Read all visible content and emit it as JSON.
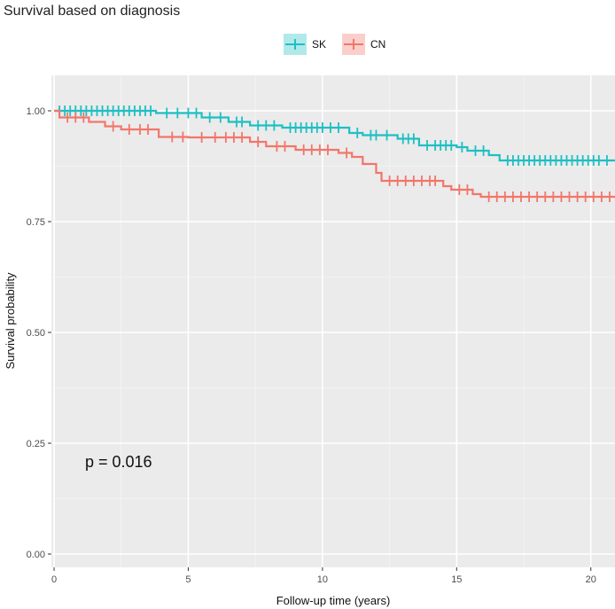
{
  "chart_data": {
    "type": "line",
    "subtype": "kaplan-meier",
    "title": "Survival based on diagnosis",
    "xlabel": "Follow-up time (years)",
    "ylabel": "Survival probability",
    "xlim": [
      -0.1,
      20.9
    ],
    "ylim": [
      -0.03,
      1.08
    ],
    "x_ticks": [
      0,
      5,
      10,
      15,
      20
    ],
    "y_ticks": [
      0.0,
      0.25,
      0.5,
      0.75,
      1.0
    ],
    "x_tick_labels": [
      "0",
      "5",
      "10",
      "15",
      "20"
    ],
    "y_tick_labels": [
      "0.00",
      "0.25",
      "0.50",
      "0.75",
      "1.00"
    ],
    "grid": true,
    "legend_position": "top",
    "annotation": "p = 0.016",
    "series": [
      {
        "name": "SK",
        "color": "#1fbfc4",
        "steps": [
          [
            0,
            1.0
          ],
          [
            3.8,
            0.995
          ],
          [
            5.5,
            0.985
          ],
          [
            6.5,
            0.975
          ],
          [
            7.3,
            0.967
          ],
          [
            8.5,
            0.962
          ],
          [
            11.0,
            0.95
          ],
          [
            11.5,
            0.945
          ],
          [
            12.8,
            0.937
          ],
          [
            13.6,
            0.922
          ],
          [
            15.0,
            0.918
          ],
          [
            15.4,
            0.91
          ],
          [
            16.2,
            0.9
          ],
          [
            16.6,
            0.888
          ],
          [
            20.9,
            0.888
          ]
        ],
        "censor_times": [
          0.2,
          0.4,
          0.6,
          0.8,
          1.0,
          1.2,
          1.4,
          1.6,
          1.8,
          2.0,
          2.2,
          2.4,
          2.6,
          2.8,
          3.0,
          3.2,
          3.4,
          3.6,
          4.2,
          4.6,
          5.0,
          5.3,
          5.8,
          6.2,
          6.8,
          7.0,
          7.6,
          7.9,
          8.2,
          8.8,
          9.0,
          9.2,
          9.4,
          9.6,
          9.8,
          10.0,
          10.3,
          10.6,
          11.3,
          11.8,
          12.0,
          12.4,
          13.0,
          13.2,
          13.4,
          13.9,
          14.2,
          14.4,
          14.6,
          14.8,
          15.2,
          15.7,
          16.0,
          16.9,
          17.1,
          17.3,
          17.5,
          17.7,
          17.9,
          18.1,
          18.3,
          18.5,
          18.7,
          18.9,
          19.1,
          19.3,
          19.5,
          19.7,
          19.9,
          20.1,
          20.3,
          20.6
        ]
      },
      {
        "name": "CN",
        "color": "#f2766b",
        "steps": [
          [
            0,
            1.0
          ],
          [
            0.2,
            0.985
          ],
          [
            1.3,
            0.975
          ],
          [
            1.9,
            0.965
          ],
          [
            2.5,
            0.958
          ],
          [
            3.9,
            0.941
          ],
          [
            5.0,
            0.94
          ],
          [
            7.3,
            0.93
          ],
          [
            7.9,
            0.92
          ],
          [
            9.0,
            0.912
          ],
          [
            10.6,
            0.905
          ],
          [
            11.1,
            0.896
          ],
          [
            11.5,
            0.88
          ],
          [
            12.0,
            0.86
          ],
          [
            12.2,
            0.842
          ],
          [
            14.5,
            0.83
          ],
          [
            14.8,
            0.822
          ],
          [
            15.6,
            0.812
          ],
          [
            15.9,
            0.806
          ],
          [
            20.9,
            0.806
          ]
        ],
        "censor_times": [
          0.5,
          0.8,
          1.1,
          2.2,
          2.8,
          3.2,
          3.5,
          4.4,
          4.8,
          5.5,
          6.0,
          6.4,
          6.7,
          7.0,
          7.6,
          8.3,
          8.6,
          9.3,
          9.6,
          9.9,
          10.2,
          10.9,
          12.5,
          12.8,
          13.1,
          13.4,
          13.7,
          14.0,
          14.2,
          15.1,
          15.4,
          16.2,
          16.5,
          16.8,
          17.1,
          17.4,
          17.7,
          18.0,
          18.3,
          18.6,
          18.9,
          19.2,
          19.5,
          19.8,
          20.1,
          20.4,
          20.7
        ]
      }
    ]
  }
}
